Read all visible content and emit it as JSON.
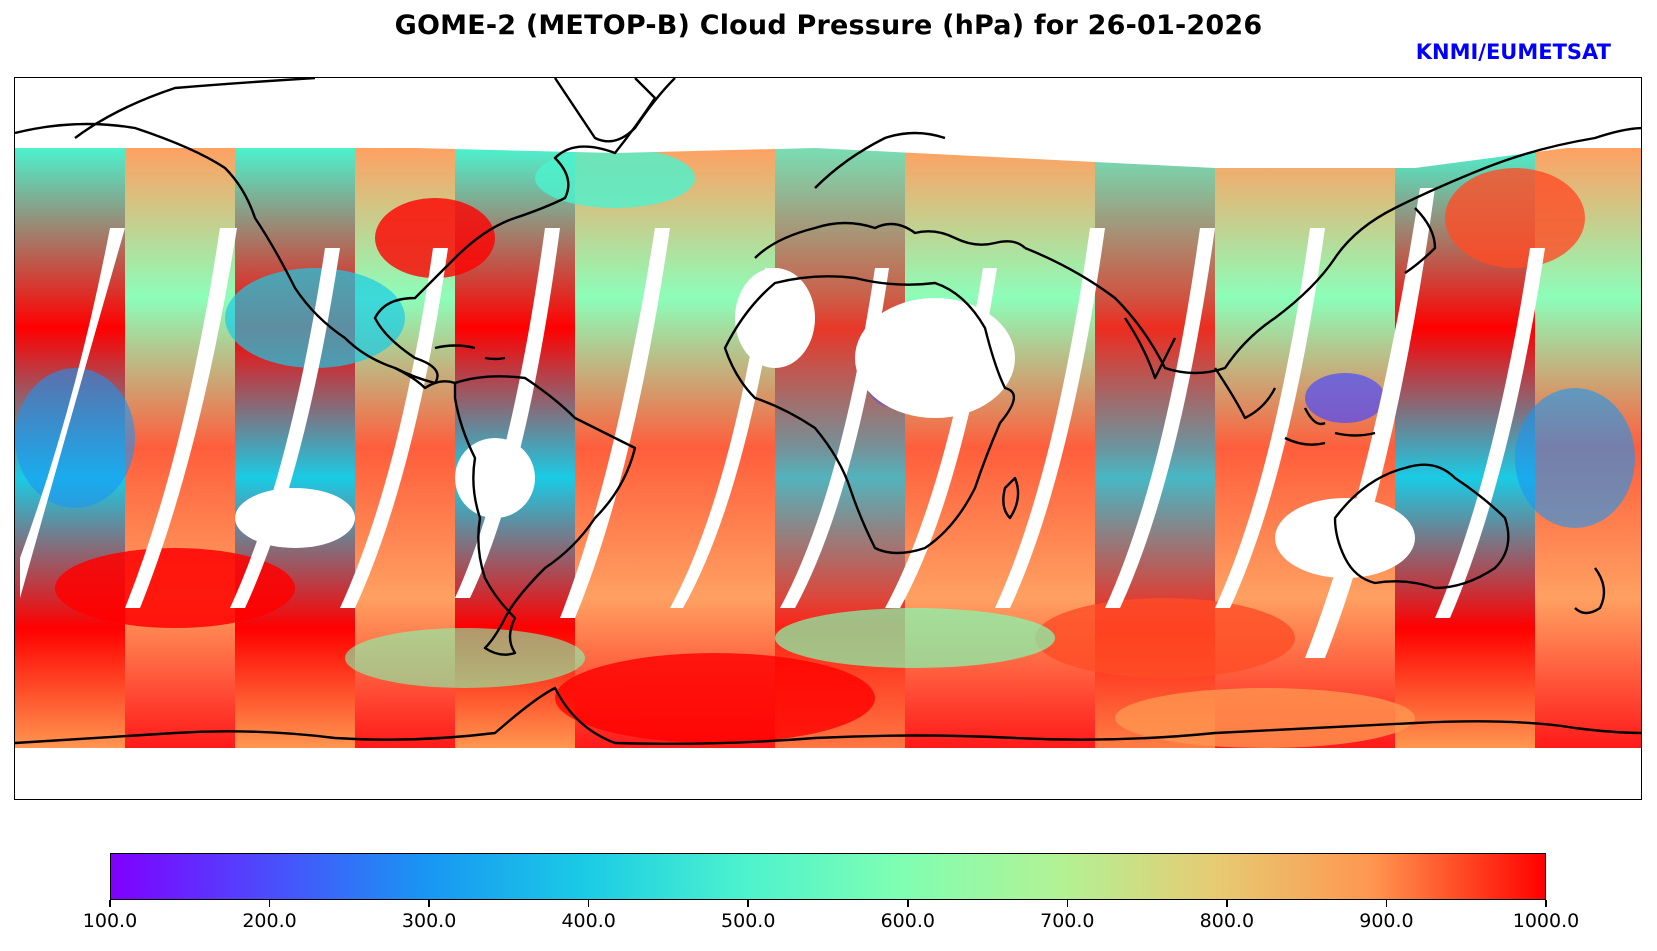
{
  "title": "GOME-2 (METOP-B) Cloud Pressure (hPa) for 26-01-2026",
  "credit": "KNMI/EUMETSAT",
  "map": {
    "projection": "plate-carree",
    "variable": "cloud pressure",
    "coastline_color": "#000000"
  },
  "colorbar": {
    "min": 100.0,
    "max": 1000.0,
    "colormap": "rainbow",
    "ticks": [
      "100.0",
      "200.0",
      "300.0",
      "400.0",
      "500.0",
      "600.0",
      "700.0",
      "800.0",
      "900.0",
      "1000.0"
    ]
  },
  "colors": {
    "low": "#7f00ff",
    "mid": "#7ffeb2",
    "high": "#ff0000",
    "credit": "#0000ff"
  }
}
